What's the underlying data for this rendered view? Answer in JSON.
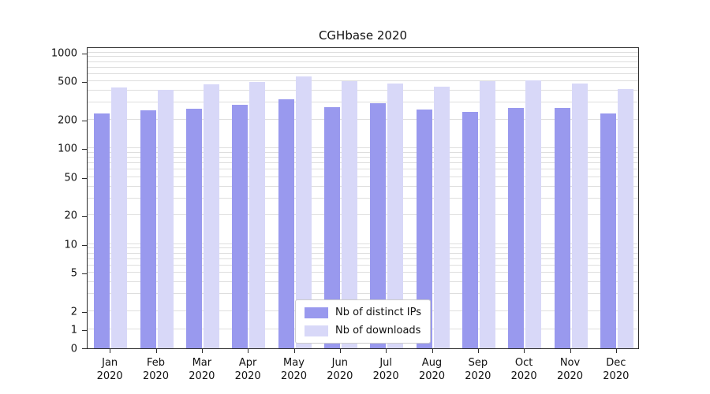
{
  "chart_data": {
    "type": "bar",
    "title": "CGHbase 2020",
    "xlabel": "",
    "ylabel": "",
    "yscale": "symlog",
    "ylim": [
      0,
      1100
    ],
    "yticks": [
      0,
      1,
      2,
      5,
      10,
      20,
      50,
      100,
      200,
      500,
      1000
    ],
    "grid": "horizontal, major and minor",
    "legend_position": "lower center",
    "categories": [
      "Jan 2020",
      "Feb 2020",
      "Mar 2020",
      "Apr 2020",
      "May 2020",
      "Jun 2020",
      "Jul 2020",
      "Aug 2020",
      "Sep 2020",
      "Oct 2020",
      "Nov 2020",
      "Dec 2020"
    ],
    "series": [
      {
        "name": "Nb of distinct IPs",
        "color": "#9999ee",
        "values": [
          230,
          250,
          260,
          285,
          325,
          270,
          295,
          255,
          240,
          265,
          265,
          230
        ]
      },
      {
        "name": "Nb of downloads",
        "color": "#d8d8f8",
        "values": [
          430,
          410,
          470,
          490,
          560,
          505,
          480,
          445,
          505,
          515,
          475,
          420
        ]
      }
    ]
  }
}
